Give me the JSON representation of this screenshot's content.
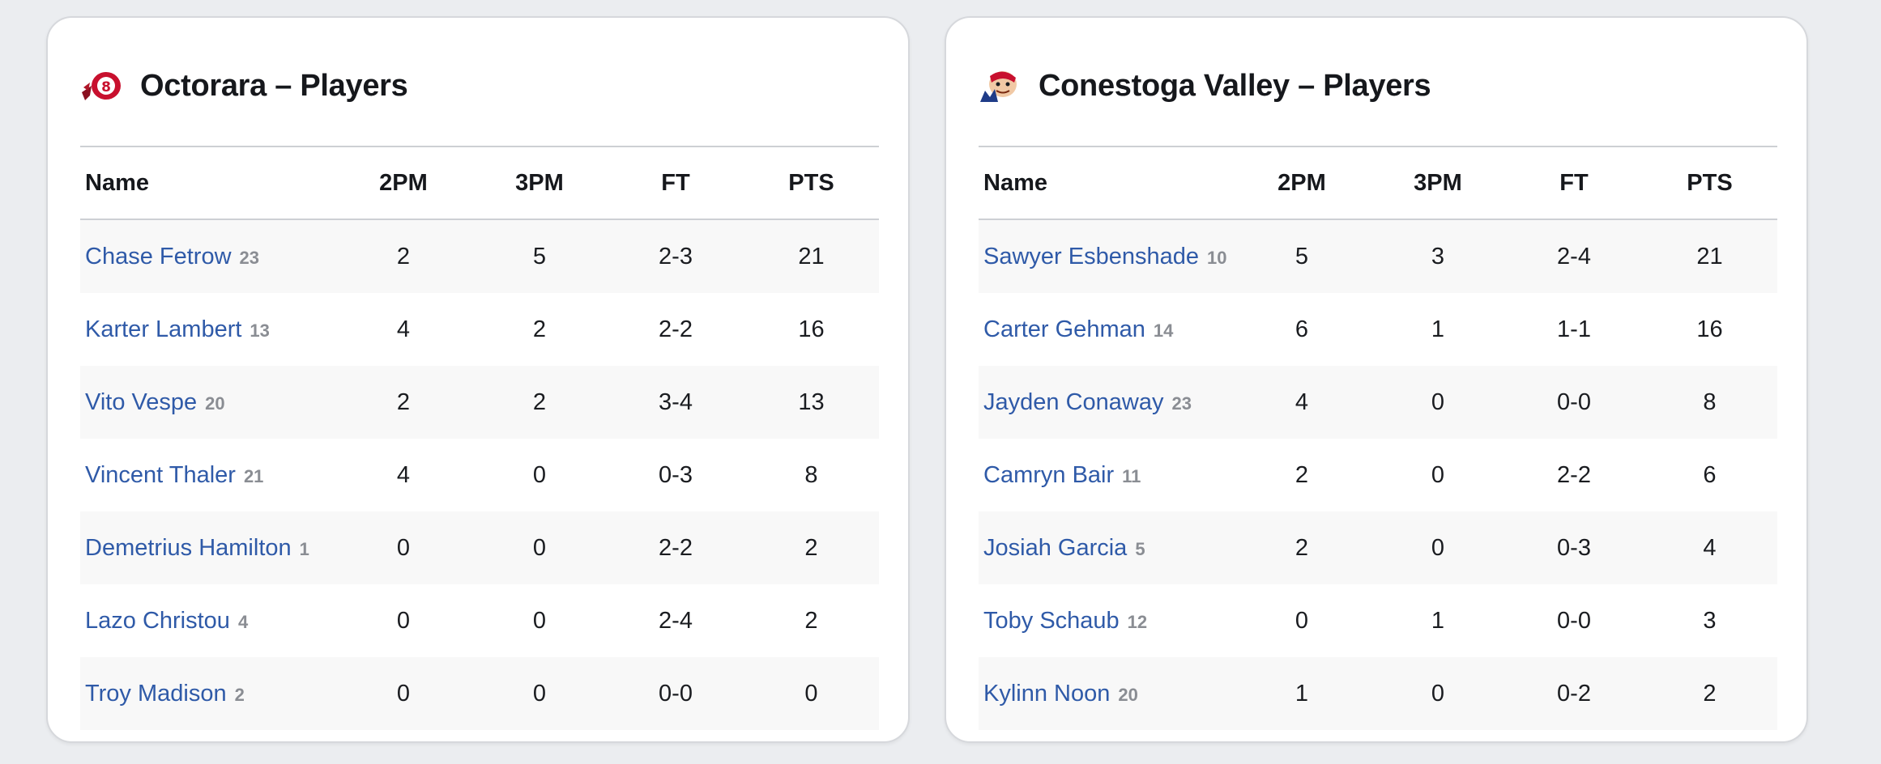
{
  "columns": {
    "name": "Name",
    "two_pm": "2PM",
    "three_pm": "3PM",
    "ft": "FT",
    "pts": "PTS"
  },
  "colors": {
    "link": "#2f5aa8",
    "octorara_logo": "#c8102e",
    "conestoga_logo": "#1f3c88"
  },
  "teams": [
    {
      "title": "Octorara – Players",
      "logo_icon": "octorara-braves-logo-icon",
      "players": [
        {
          "name": "Chase Fetrow",
          "number": "23",
          "two_pm": "2",
          "three_pm": "5",
          "ft": "2-3",
          "pts": "21"
        },
        {
          "name": "Karter Lambert",
          "number": "13",
          "two_pm": "4",
          "three_pm": "2",
          "ft": "2-2",
          "pts": "16"
        },
        {
          "name": "Vito Vespe",
          "number": "20",
          "two_pm": "2",
          "three_pm": "2",
          "ft": "3-4",
          "pts": "13"
        },
        {
          "name": "Vincent Thaler",
          "number": "21",
          "two_pm": "4",
          "three_pm": "0",
          "ft": "0-3",
          "pts": "8"
        },
        {
          "name": "Demetrius Hamilton",
          "number": "1",
          "two_pm": "0",
          "three_pm": "0",
          "ft": "2-2",
          "pts": "2"
        },
        {
          "name": "Lazo Christou",
          "number": "4",
          "two_pm": "0",
          "three_pm": "0",
          "ft": "2-4",
          "pts": "2"
        },
        {
          "name": "Troy Madison",
          "number": "2",
          "two_pm": "0",
          "three_pm": "0",
          "ft": "0-0",
          "pts": "0"
        }
      ]
    },
    {
      "title": "Conestoga Valley – Players",
      "logo_icon": "conestoga-valley-buckskins-logo-icon",
      "players": [
        {
          "name": "Sawyer Esbenshade",
          "number": "10",
          "two_pm": "5",
          "three_pm": "3",
          "ft": "2-4",
          "pts": "21"
        },
        {
          "name": "Carter Gehman",
          "number": "14",
          "two_pm": "6",
          "three_pm": "1",
          "ft": "1-1",
          "pts": "16"
        },
        {
          "name": "Jayden Conaway",
          "number": "23",
          "two_pm": "4",
          "three_pm": "0",
          "ft": "0-0",
          "pts": "8"
        },
        {
          "name": "Camryn Bair",
          "number": "11",
          "two_pm": "2",
          "three_pm": "0",
          "ft": "2-2",
          "pts": "6"
        },
        {
          "name": "Josiah Garcia",
          "number": "5",
          "two_pm": "2",
          "three_pm": "0",
          "ft": "0-3",
          "pts": "4"
        },
        {
          "name": "Toby Schaub",
          "number": "12",
          "two_pm": "0",
          "three_pm": "1",
          "ft": "0-0",
          "pts": "3"
        },
        {
          "name": "Kylinn Noon",
          "number": "20",
          "two_pm": "1",
          "three_pm": "0",
          "ft": "0-2",
          "pts": "2"
        }
      ]
    }
  ]
}
